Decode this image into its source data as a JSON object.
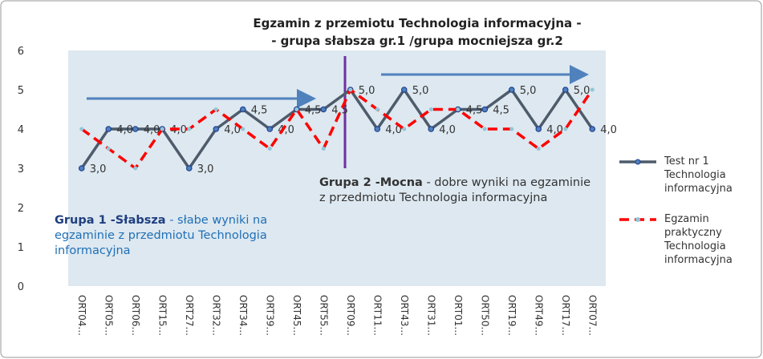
{
  "chart_data": {
    "type": "line",
    "title_lines": [
      "Egzamin z przemiotu Technologia informacyjna -",
      "- grupa słabsza gr.1 /grupa mocniejsza gr.2"
    ],
    "categories": [
      "ORT04...",
      "ORT05...",
      "ORT06...",
      "ORT15...",
      "ORT27...",
      "ORT32...",
      "ORT34...",
      "ORT39...",
      "ORT45...",
      "ORT55...",
      "ORT09...",
      "ORT11...",
      "ORT43...",
      "ORT31...",
      "ORT01...",
      "ORT50...",
      "ORT19...",
      "ORT49...",
      "ORT17...",
      "ORT07..."
    ],
    "series": [
      {
        "name": "Test nr 1 Technologia informacyjna",
        "color": "#4d5b6b",
        "marker_color": "#1f3f8f",
        "values": [
          3,
          4,
          4,
          4,
          3,
          4,
          4.5,
          4,
          4.5,
          4.5,
          5,
          4,
          5,
          4,
          4.5,
          4.5,
          5,
          4,
          5,
          4
        ],
        "value_labels": [
          "3,0",
          "4,0",
          "4,0",
          "4,0",
          "3,0",
          "4,0",
          "4,5",
          "4,0",
          "4,5",
          "4,5",
          "5,0",
          "4,0",
          "5,0",
          "4,0",
          "4,5",
          "4,5",
          "5,0",
          "4,0",
          "5,0",
          "4,0"
        ]
      },
      {
        "name": "Egzamin praktyczny Technologia informacyjna",
        "color": "#ff0000",
        "marker_color": "#93c6d8",
        "dashed": true,
        "values": [
          4,
          3.5,
          3,
          4,
          4,
          4.5,
          4,
          3.5,
          4.5,
          3.5,
          5,
          4.5,
          4,
          4.5,
          4.5,
          4,
          4,
          3.5,
          4,
          5
        ]
      }
    ],
    "ylim": [
      0,
      6
    ],
    "yticks": [
      0,
      1,
      2,
      3,
      4,
      5,
      6
    ],
    "grid": false,
    "annotations": [
      {
        "bold": "Grupa 1 -Słabsza",
        "text": " - słabe wyniki na egzaminie z przedmiotu Technologia informacyjna"
      },
      {
        "bold": "Grupa 2 -Mocna",
        "text": " - dobre wyniki na egzaminie z przedmiotu Technologia informacyjna"
      }
    ]
  }
}
